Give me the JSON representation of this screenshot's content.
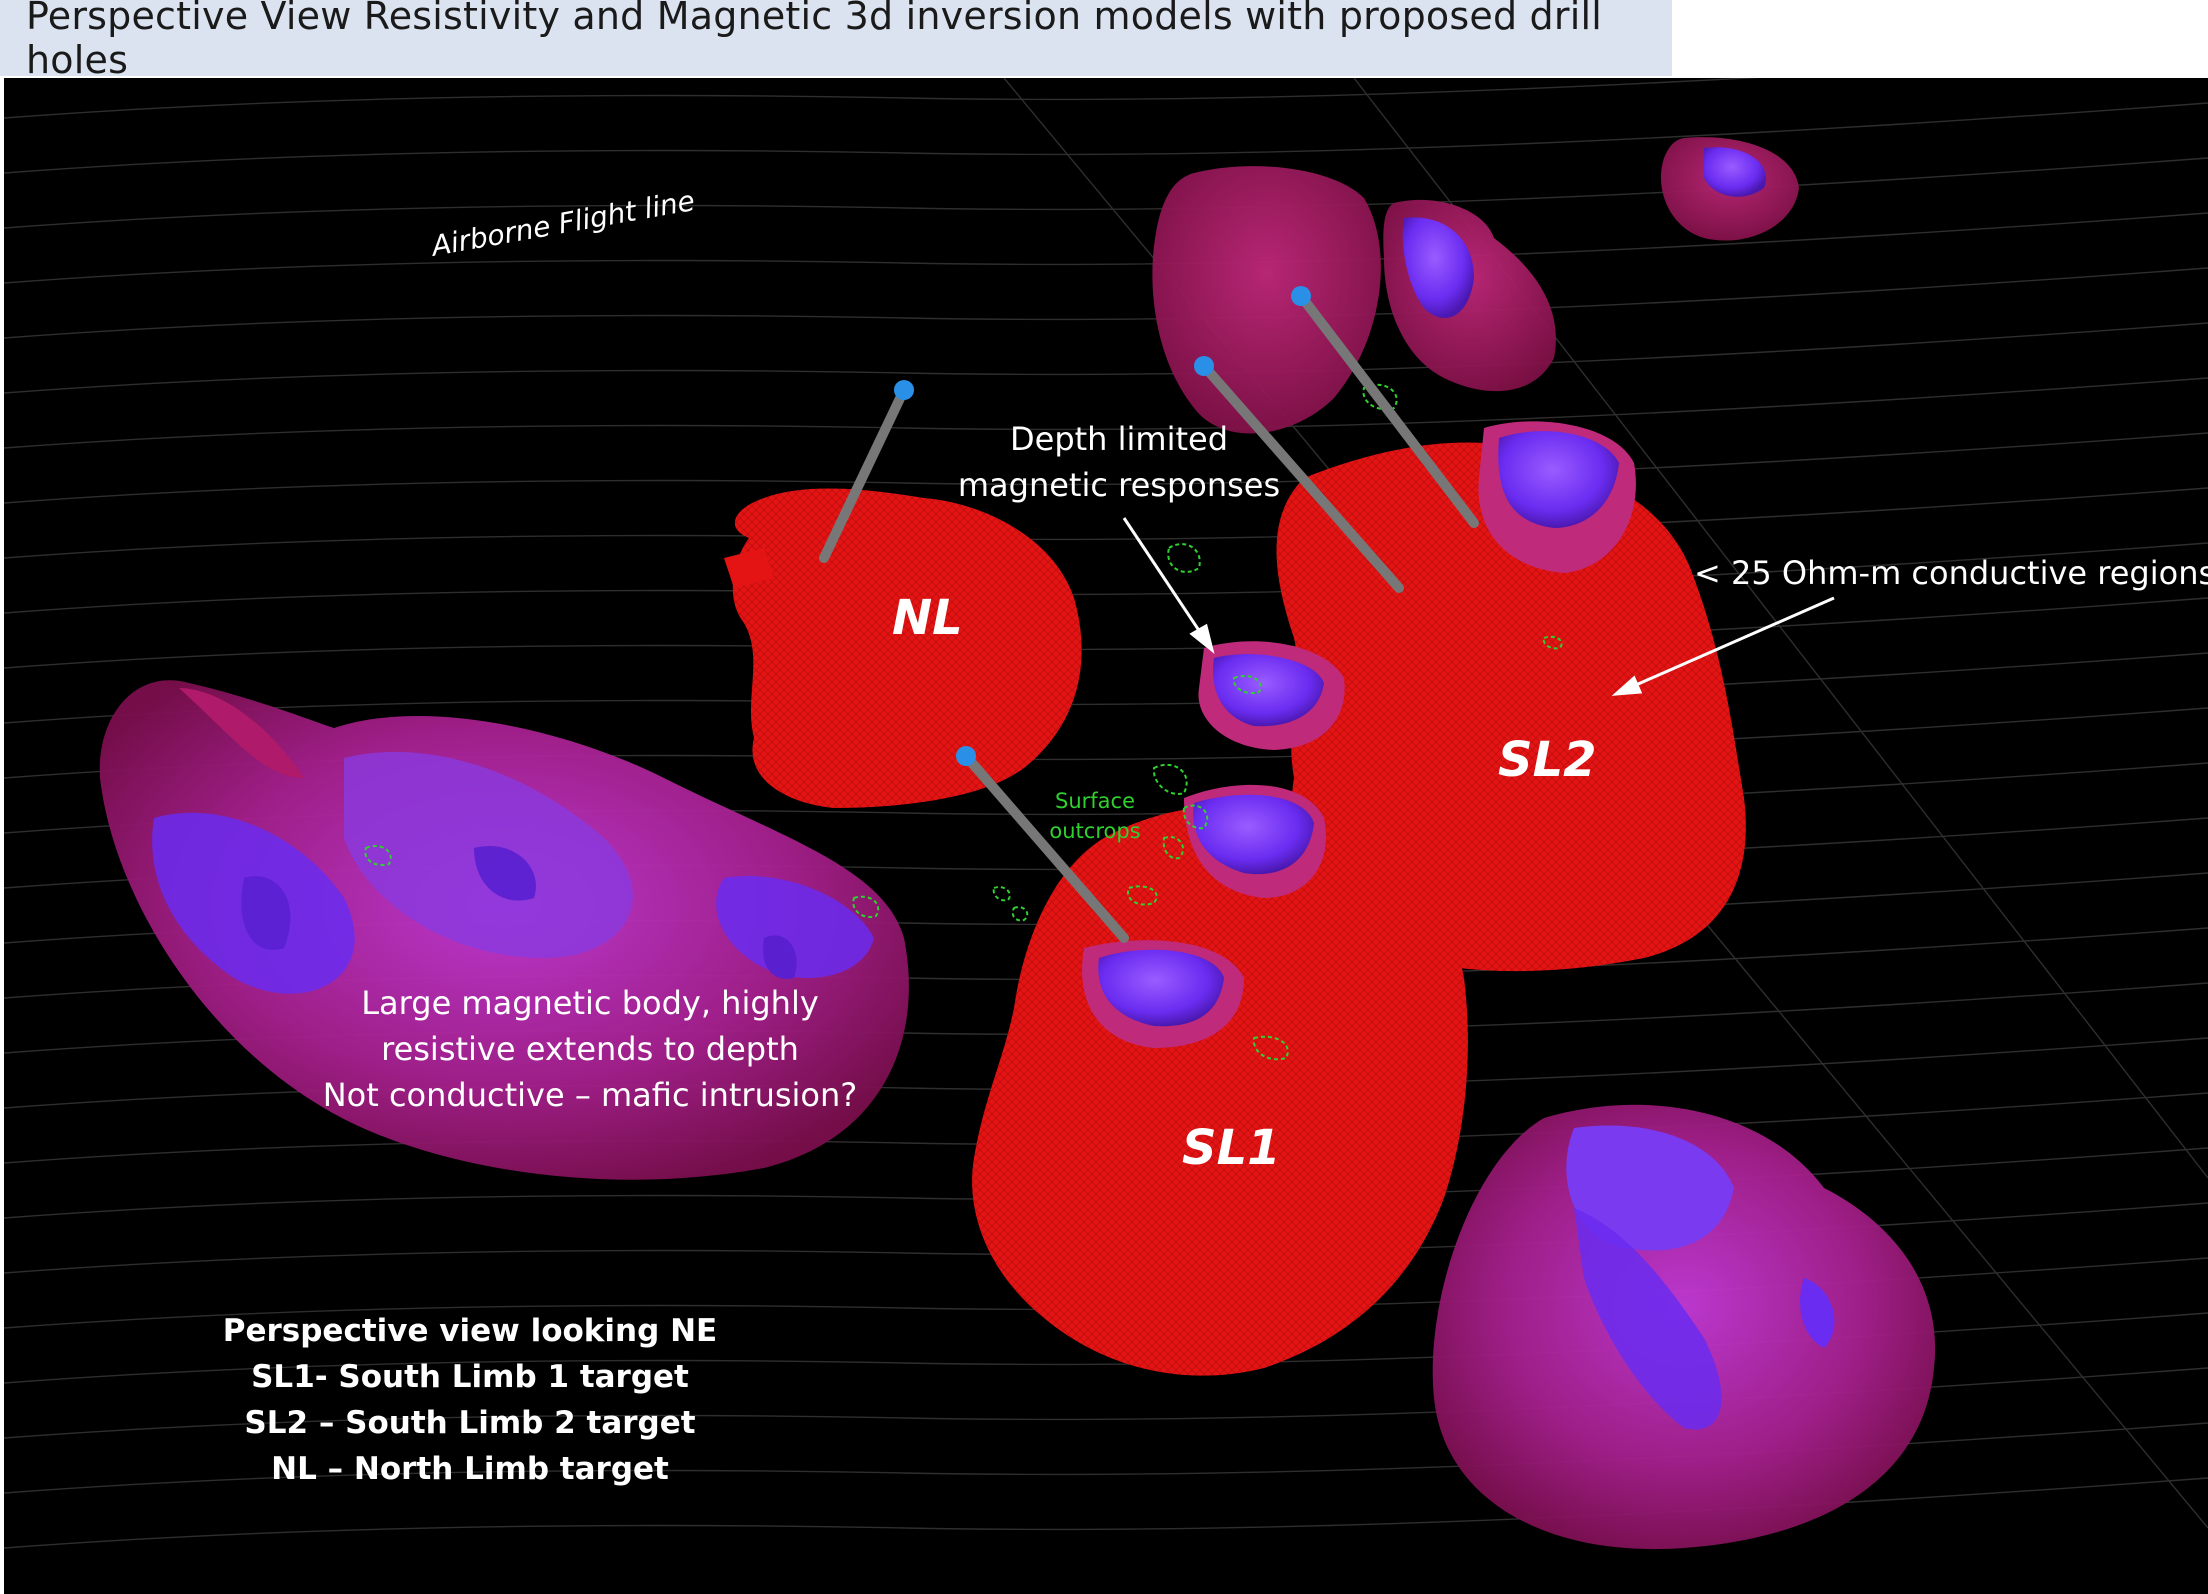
{
  "title": "Perspective View Resistivity and Magnetic 3d inversion models with proposed drill holes",
  "labels": {
    "flight_line": "Airborne Flight line",
    "nl": "NL",
    "sl1": "SL1",
    "sl2": "SL2",
    "depth_limited": [
      "Depth limited",
      "magnetic responses"
    ],
    "conductive": "< 25 Ohm-m conductive regions",
    "surface_outcrops": [
      "Surface",
      "outcrops"
    ],
    "large_body": [
      "Large magnetic body, highly",
      "resistive extends to depth",
      "Not conductive – mafic intrusion?"
    ]
  },
  "legend": [
    "Perspective view looking NE",
    "SL1- South Limb 1 target",
    "SL2 – South Limb 2 target",
    "NL – North Limb target"
  ],
  "colors": {
    "conductive": "#e41414",
    "magnetic": "#6a2cf0",
    "resistive_shell": "#a6208e",
    "drill_hole_collar": "#2a8fe6",
    "outcrop": "#2fd02f",
    "title_background": "#dbe3f1"
  }
}
